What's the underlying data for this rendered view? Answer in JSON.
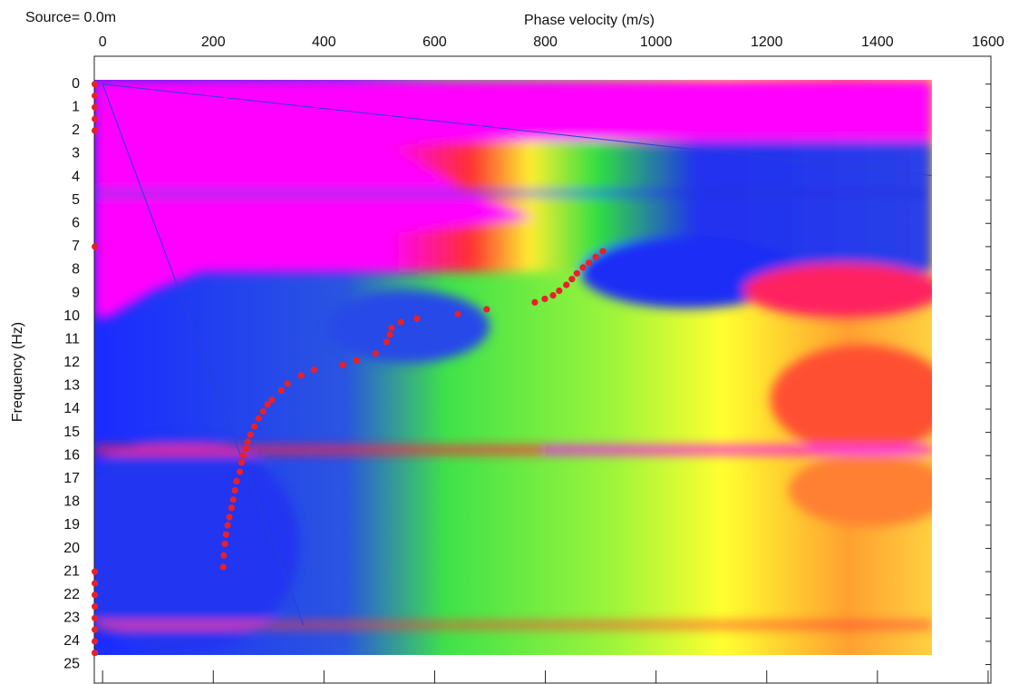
{
  "chart_data": {
    "type": "scatter",
    "title": "Source=  0.0m",
    "x_label": "Phase velocity (m/s)",
    "y_label": "Frequency (Hz)",
    "xlim": [
      -15,
      1605
    ],
    "ylim": [
      -1.2,
      25.8
    ],
    "y_inverted": true,
    "xticks": [
      0,
      200,
      400,
      600,
      800,
      1000,
      1200,
      1400,
      1600
    ],
    "yticks": [
      0,
      1,
      2,
      3,
      4,
      5,
      6,
      7,
      8,
      9,
      10,
      11,
      12,
      13,
      14,
      15,
      16,
      17,
      18,
      19,
      20,
      21,
      22,
      23,
      24,
      25
    ],
    "series": [
      {
        "color": "#e8202a",
        "x": [
          904,
          891,
          879,
          868,
          857,
          848,
          838,
          825,
          814,
          799,
          781,
          694,
          642,
          568,
          539,
          522,
          519,
          513,
          493,
          459,
          434,
          382,
          359,
          334,
          323,
          306,
          298,
          290,
          282,
          274,
          267,
          262,
          259,
          254,
          251,
          248,
          242,
          239,
          236,
          233,
          229,
          226,
          223,
          221,
          219,
          218
        ],
        "values": [
          7.2,
          7.45,
          7.7,
          7.9,
          8.15,
          8.4,
          8.65,
          8.9,
          9.1,
          9.25,
          9.4,
          9.7,
          9.9,
          10.1,
          10.25,
          10.5,
          10.8,
          11.1,
          11.6,
          11.9,
          12.1,
          12.3,
          12.55,
          12.9,
          13.2,
          13.6,
          13.8,
          14.1,
          14.4,
          14.75,
          15.1,
          15.4,
          15.7,
          16.0,
          16.3,
          16.7,
          17.1,
          17.5,
          17.9,
          18.25,
          18.65,
          19.0,
          19.4,
          19.8,
          20.3,
          20.8
        ]
      },
      {
        "color": "#e8202a",
        "x": [
          -14,
          -14,
          -14,
          -14,
          -14,
          -14,
          -14,
          -14,
          -14,
          -14,
          -14,
          -14,
          -14,
          -14
        ],
        "values": [
          0,
          0.5,
          1,
          1.5,
          2,
          21,
          21.5,
          22,
          22.5,
          23,
          23.5,
          24,
          24.5,
          7
        ]
      }
    ],
    "lines": [
      {
        "color": "#2b3fd6",
        "x": [
          0,
          1498
        ],
        "values": [
          0,
          3.94
        ]
      },
      {
        "color": "#2b3fd6",
        "x": [
          0,
          363
        ],
        "values": [
          0,
          23.3
        ]
      }
    ]
  }
}
